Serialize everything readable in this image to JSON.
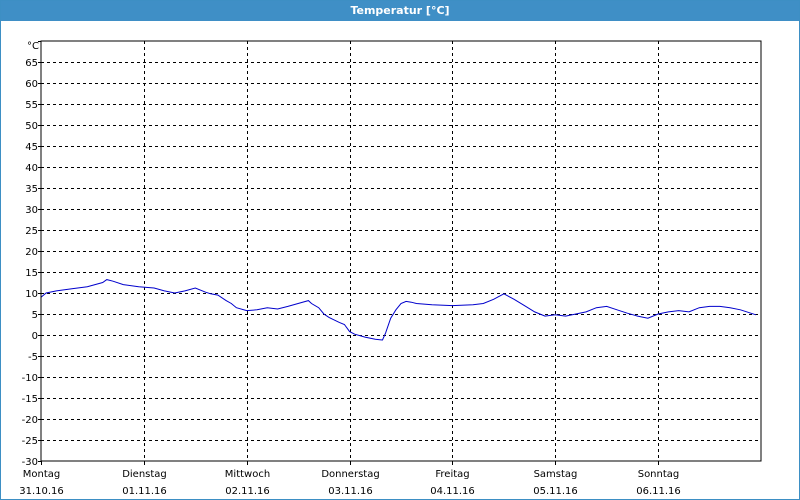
{
  "window": {
    "title": "Temperatur [°C]"
  },
  "colors": {
    "titlebar": "#3f8fc6",
    "series": "#0000cc",
    "grid": "#000000"
  },
  "chart_data": {
    "type": "line",
    "title": "Temperatur [°C]",
    "unit_label": "°C",
    "ylim": [
      -30,
      70
    ],
    "ytick_step": 5,
    "ytick_max_labeled": 65,
    "xlim": [
      0,
      7
    ],
    "grid": true,
    "day_ticks": [
      {
        "day": "Montag",
        "date": "31.10.16"
      },
      {
        "day": "Dienstag",
        "date": "01.11.16"
      },
      {
        "day": "Mittwoch",
        "date": "02.11.16"
      },
      {
        "day": "Donnerstag",
        "date": "03.11.16"
      },
      {
        "day": "Freitag",
        "date": "04.11.16"
      },
      {
        "day": "Samstag",
        "date": "05.11.16"
      },
      {
        "day": "Sonntag",
        "date": "06.11.16"
      }
    ],
    "series": [
      {
        "x": [
          0.0,
          0.05,
          0.15,
          0.3,
          0.45,
          0.6,
          0.64,
          0.7,
          0.8,
          0.95,
          1.1,
          1.2,
          1.3,
          1.4,
          1.5,
          1.6,
          1.65,
          1.72,
          1.8,
          1.85,
          1.9,
          2.0,
          2.1,
          2.2,
          2.3,
          2.4,
          2.5,
          2.6,
          2.63,
          2.7,
          2.75,
          2.8,
          2.9,
          2.95,
          3.0,
          3.05,
          3.15,
          3.25,
          3.32,
          3.35,
          3.4,
          3.45,
          3.5,
          3.55,
          3.6,
          3.65,
          3.8,
          4.0,
          4.2,
          4.3,
          4.4,
          4.5,
          4.6,
          4.7,
          4.8,
          4.9,
          5.0,
          5.1,
          5.2,
          5.3,
          5.4,
          5.5,
          5.6,
          5.7,
          5.8,
          5.9,
          6.0,
          6.1,
          6.2,
          6.3,
          6.4,
          6.5,
          6.6,
          6.7,
          6.8,
          6.95
        ],
        "y": [
          9,
          10,
          10.5,
          11,
          11.5,
          12.5,
          13.2,
          12.8,
          12,
          11.5,
          11.2,
          10.5,
          10,
          10.5,
          11.2,
          10.2,
          9.8,
          9.5,
          8.2,
          7.5,
          6.5,
          5.8,
          6.0,
          6.5,
          6.2,
          6.8,
          7.5,
          8.2,
          7.5,
          6.5,
          5.0,
          4.2,
          3.0,
          2.5,
          0.8,
          0.2,
          -0.5,
          -1.0,
          -1.2,
          0.5,
          4.0,
          6.0,
          7.5,
          8.0,
          7.8,
          7.5,
          7.2,
          7.0,
          7.2,
          7.5,
          8.5,
          9.8,
          8.5,
          7.0,
          5.5,
          4.5,
          4.8,
          4.5,
          5.0,
          5.5,
          6.5,
          6.8,
          6.0,
          5.2,
          4.5,
          4.0,
          5.0,
          5.5,
          5.8,
          5.5,
          6.5,
          6.8,
          6.8,
          6.5,
          6.0,
          4.8
        ]
      }
    ]
  }
}
